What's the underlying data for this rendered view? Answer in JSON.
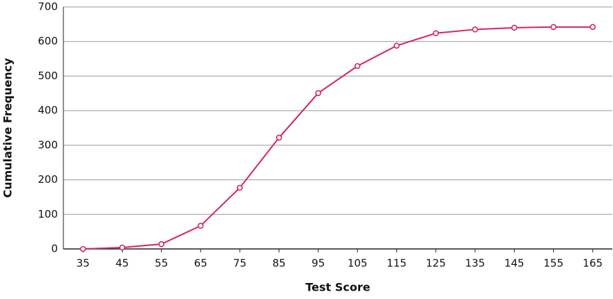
{
  "chart_data": {
    "type": "line",
    "x_label": "Test Score",
    "y_label": "Cumulative Frequency",
    "x": [
      35,
      45,
      55,
      65,
      75,
      85,
      95,
      105,
      115,
      125,
      135,
      145,
      155,
      165
    ],
    "values": [
      0,
      4,
      14,
      67,
      177,
      322,
      451,
      529,
      588,
      624,
      635,
      640,
      642,
      642
    ],
    "color": "#d6245e",
    "xlim": [
      30,
      170
    ],
    "xticks": [
      35,
      45,
      55,
      65,
      75,
      85,
      95,
      105,
      115,
      125,
      135,
      145,
      155,
      165
    ],
    "ylim": [
      0,
      700
    ],
    "yticks": [
      0,
      100,
      200,
      300,
      400,
      500,
      600,
      700
    ],
    "grid": true
  }
}
